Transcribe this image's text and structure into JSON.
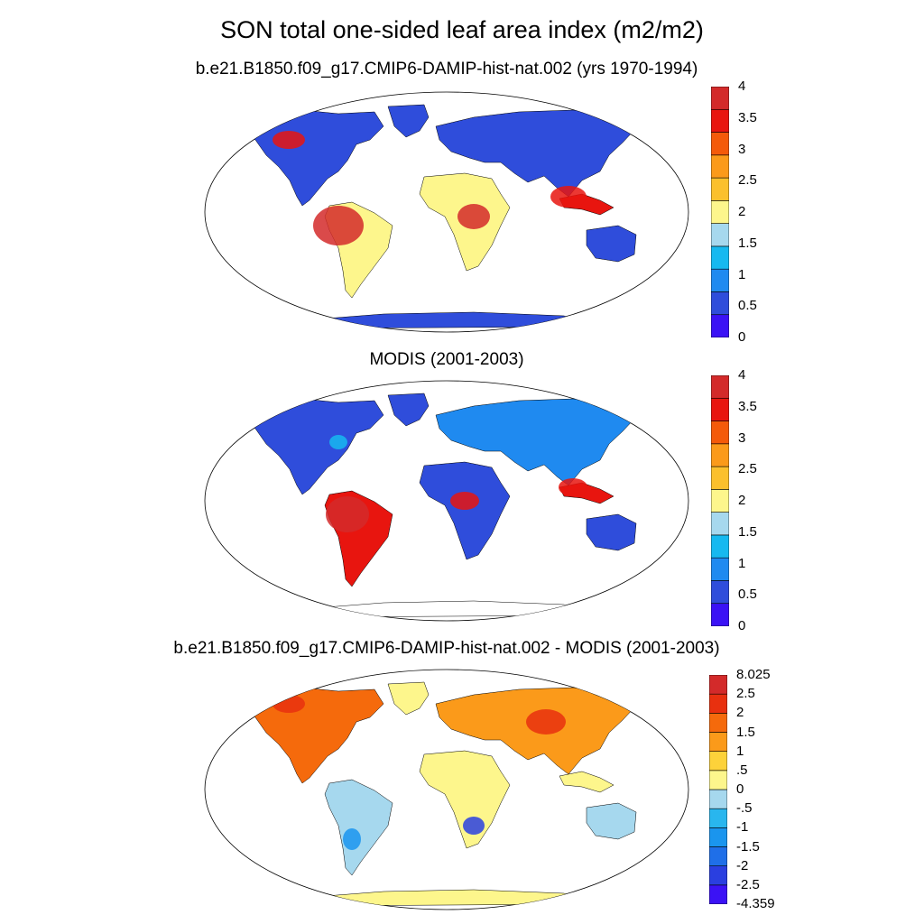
{
  "title": "SON total one-sided leaf area index (m2/m2)",
  "panels": [
    {
      "id": "model",
      "subtitle": "b.e21.B1850.f09_g17.CMIP6-DAMIP-hist-nat.002 (yrs 1970-1994)",
      "colorbar": {
        "colors": [
          "#3b12f5",
          "#2f4ddb",
          "#1f8af0",
          "#16b9f0",
          "#a6d8ee",
          "#fdf68c",
          "#fbc02d",
          "#fb9a1a",
          "#f45a0a",
          "#e8150f",
          "#d32a2a"
        ],
        "labels": [
          "0",
          "0.5",
          "1",
          "1.5",
          "2",
          "2.5",
          "3",
          "3.5",
          "4"
        ]
      }
    },
    {
      "id": "obs",
      "subtitle": "MODIS (2001-2003)",
      "colorbar": {
        "colors": [
          "#3b12f5",
          "#2f4ddb",
          "#1f8af0",
          "#16b9f0",
          "#a6d8ee",
          "#fdf68c",
          "#fbc02d",
          "#fb9a1a",
          "#f45a0a",
          "#e8150f",
          "#d32a2a"
        ],
        "labels": [
          "0",
          "0.5",
          "1",
          "1.5",
          "2",
          "2.5",
          "3",
          "3.5",
          "4"
        ]
      }
    },
    {
      "id": "diff",
      "subtitle": "b.e21.B1850.f09_g17.CMIP6-DAMIP-hist-nat.002 - MODIS (2001-2003)",
      "colorbar": {
        "colors": [
          "#3b12f5",
          "#2a3fe0",
          "#1f6fe8",
          "#1a95ee",
          "#29b6ee",
          "#a6d8ee",
          "#fdf68c",
          "#fdd23a",
          "#fb9a1a",
          "#f56a0c",
          "#e8300f",
          "#d32a2a"
        ],
        "labels": [
          "-4.359",
          "-2.5",
          "-2",
          "-1.5",
          "-1",
          "-.5",
          "0",
          ".5",
          "1",
          "1.5",
          "2",
          "2.5",
          "8.025"
        ]
      }
    }
  ]
}
